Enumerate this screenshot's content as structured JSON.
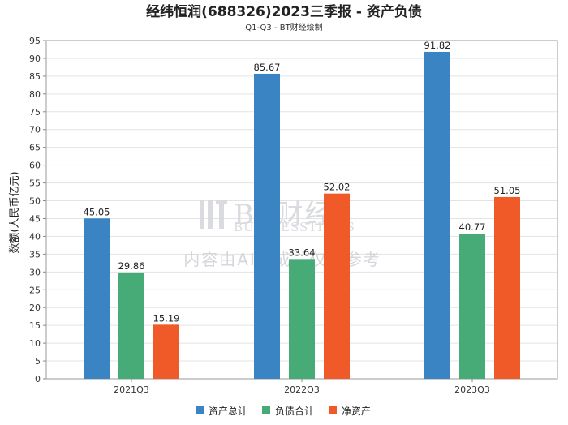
{
  "chart_data": {
    "type": "bar",
    "title": "经纬恒润(688326)2023三季报 - 资产负债",
    "subtitle": "Q1-Q3 - BT财经绘制",
    "xlabel": "",
    "ylabel": "数额(人民币亿元)",
    "ylim": [
      0,
      95
    ],
    "ytick_step": 5,
    "grid": true,
    "legend_position": "bottom-center",
    "categories": [
      "2021Q3",
      "2022Q3",
      "2023Q3"
    ],
    "series": [
      {
        "name": "资产总计",
        "color": "#3a84c4",
        "values": [
          45.05,
          85.67,
          91.82
        ],
        "labels": [
          "45.05",
          "85.67",
          "91.82"
        ]
      },
      {
        "name": "负债合计",
        "color": "#47ab78",
        "values": [
          29.86,
          33.64,
          40.77
        ],
        "labels": [
          "29.86",
          "33.64",
          "40.77"
        ]
      },
      {
        "name": "净资产",
        "color": "#f05a28",
        "values": [
          15.19,
          52.02,
          51.05
        ],
        "labels": [
          "15.19",
          "52.02",
          "51.05"
        ]
      }
    ]
  },
  "watermark": {
    "brand": "BT财经",
    "brand_sub": "BUSINESSTIMES",
    "note": "内容由AI生成，仅供参考"
  }
}
